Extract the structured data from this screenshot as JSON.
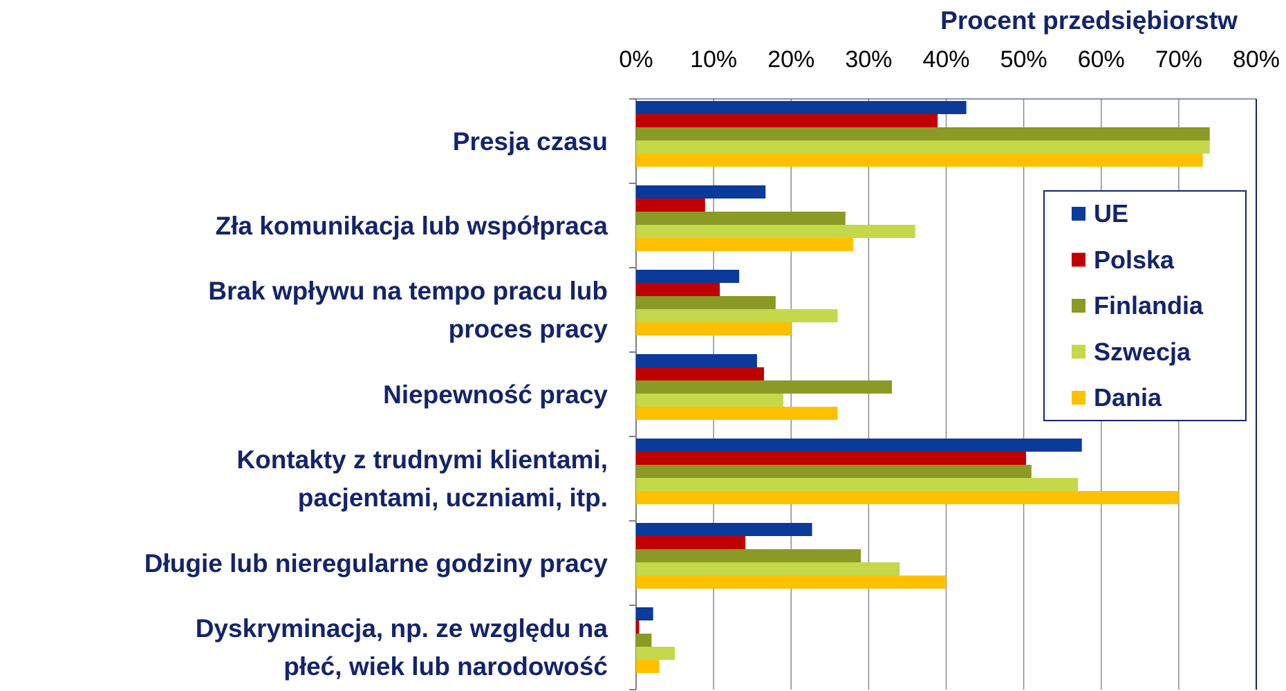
{
  "chart_data": {
    "type": "barh",
    "x_label": "Procent przedsiębiorstw",
    "categories": [
      "Presja czasu",
      "Zła komunikacja lub współpraca",
      "Brak wpływu na tempo pracu lub\nproces pracy",
      "Niepewność pracy",
      "Kontakty z trudnymi klientami,\npacjentami, uczniami, itp.",
      "Długie lub nieregularne godziny pracy",
      "Dyskryminacja, np. ze względu na\npłeć, wiek lub narodowość"
    ],
    "series": [
      {
        "name": "UE",
        "color": "#0b3a9a",
        "values": [
          42.6,
          16.7,
          13.3,
          15.6,
          57.5,
          22.7,
          2.2
        ]
      },
      {
        "name": "Polska",
        "color": "#c00000",
        "values": [
          38.9,
          8.9,
          10.8,
          16.5,
          50.3,
          14.1,
          0.4
        ]
      },
      {
        "name": "Finlandia",
        "color": "#8a9a25",
        "values": [
          74,
          27,
          18,
          33,
          51,
          29,
          2
        ]
      },
      {
        "name": "Szwecja",
        "color": "#c4d84a",
        "values": [
          74,
          36,
          26,
          19,
          57,
          34,
          5
        ]
      },
      {
        "name": "Dania",
        "color": "#ffc000",
        "values": [
          73.1,
          28,
          20,
          26,
          70,
          40,
          3
        ]
      }
    ],
    "xlim": [
      0,
      80
    ],
    "xticks": [
      {
        "value": 0,
        "label": "0%"
      },
      {
        "value": 10,
        "label": "10%"
      },
      {
        "value": 20,
        "label": "20%"
      },
      {
        "value": 30,
        "label": "30%"
      },
      {
        "value": 40,
        "label": "40%"
      },
      {
        "value": 50,
        "label": "50%"
      },
      {
        "value": 60,
        "label": "60%"
      },
      {
        "value": 70,
        "label": "70%"
      },
      {
        "value": 80,
        "label": "80%"
      }
    ],
    "grid": true,
    "legend": "upper right"
  }
}
